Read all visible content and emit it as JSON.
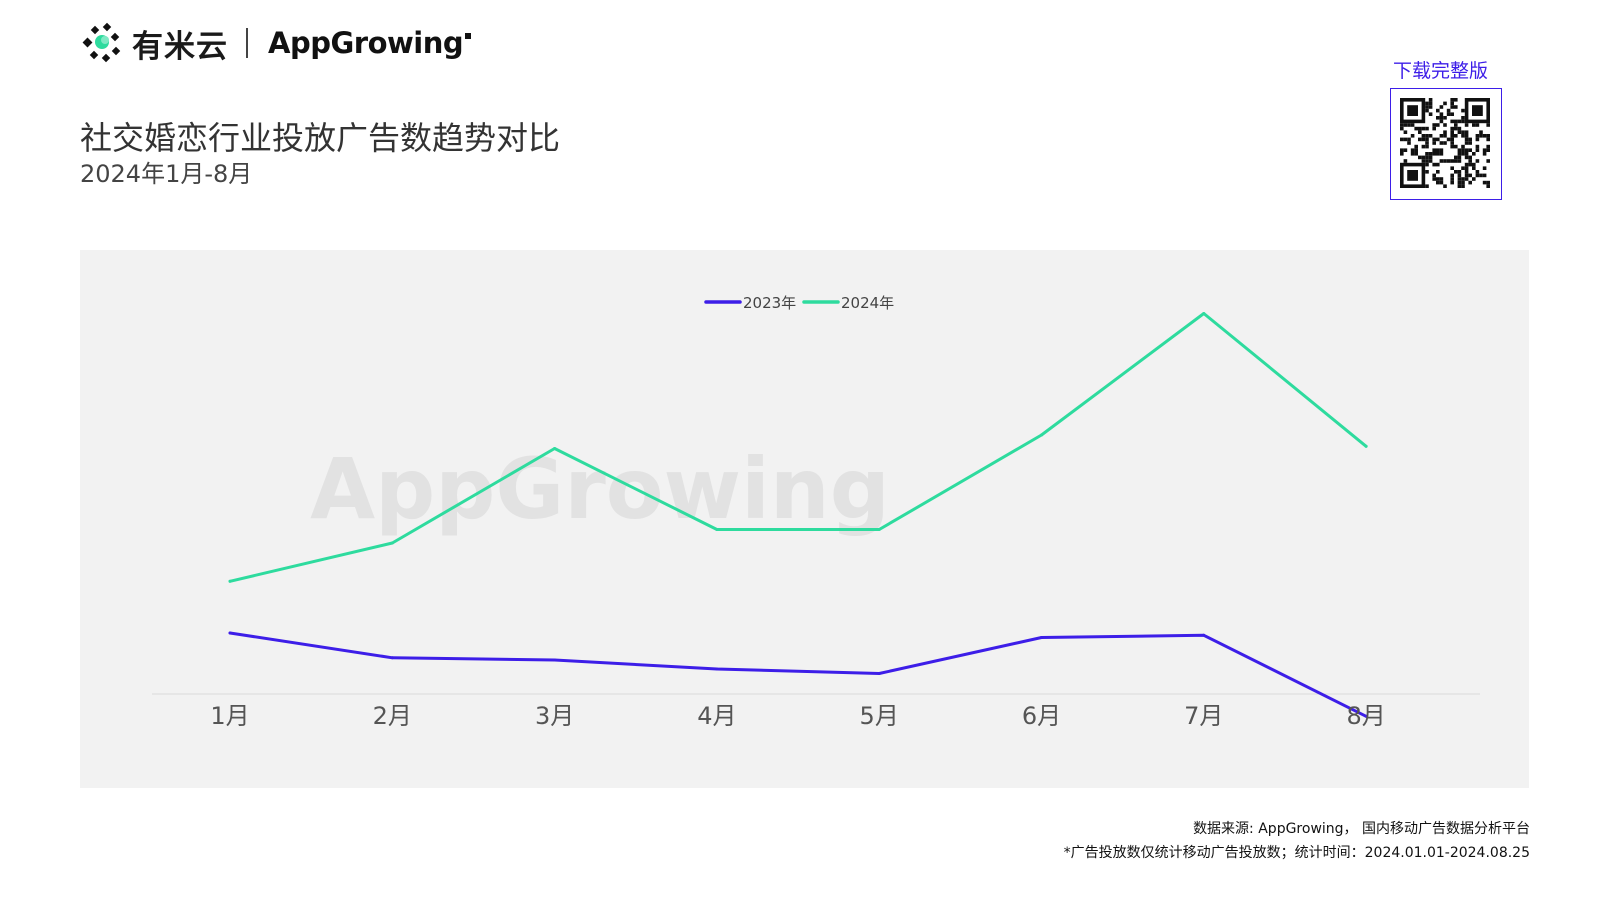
{
  "brand": {
    "ymy_name": "有米云",
    "appgrowing_name": "AppGrowing",
    "watermark": "AppGrowing"
  },
  "header": {
    "title": "社交婚恋行业投放广告数趋势对比",
    "subtitle": "2024年1月-8月"
  },
  "download": {
    "label": "下载完整版",
    "qr_icon": "qr-code-icon"
  },
  "colors": {
    "series_2023": "#3d1ee8",
    "series_2024": "#2edb9e",
    "panel_bg": "#f2f2f2",
    "accent": "#3d1ee8"
  },
  "chart_data": {
    "type": "line",
    "title": "社交婚恋行业投放广告数趋势对比",
    "subtitle": "2024年1月-8月",
    "xlabel": "",
    "ylabel": "",
    "y_axis_labels_shown": false,
    "grid": false,
    "legend_position": "top-center",
    "categories": [
      "1月",
      "2月",
      "3月",
      "4月",
      "5月",
      "6月",
      "7月",
      "8月"
    ],
    "ylim": [
      0,
      100
    ],
    "series": [
      {
        "name": "2023年",
        "values": [
          26,
          20.5,
          20,
          18,
          17,
          25,
          25.5,
          7.5
        ]
      },
      {
        "name": "2024年",
        "values": [
          37.5,
          46,
          67,
          49,
          49,
          70,
          97,
          67.5
        ]
      }
    ]
  },
  "footer": {
    "source": "数据来源: AppGrowing， 国内移动广告数据分析平台",
    "note": "*广告投放数仅统计移动广告投放数；统计时间：2024.01.01-2024.08.25"
  }
}
